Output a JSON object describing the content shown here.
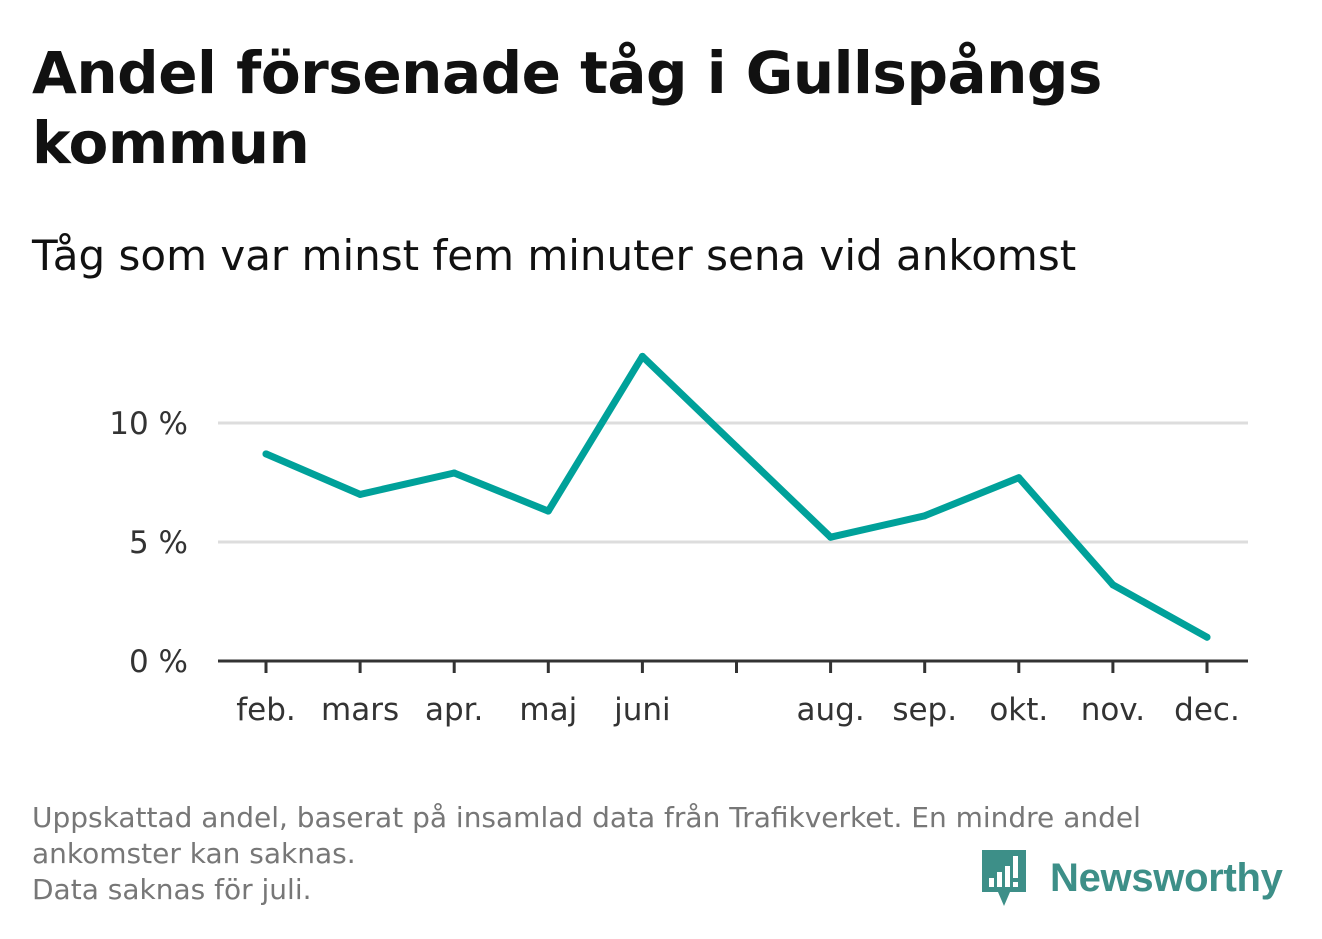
{
  "title": "Andel försenade tåg i Gullspångs kommun",
  "subtitle": "Tåg som var minst fem minuter sena vid ankomst",
  "footer": {
    "line1": "Uppskattad andel, baserat på insamlad data från Trafikverket. En mindre andel",
    "line2": "ankomster kan saknas.",
    "line3": "Data saknas för juli."
  },
  "brand": {
    "name": "Newsworthy",
    "icon": "newsworthy-logo-icon",
    "color": "#3d8f88"
  },
  "colors": {
    "line": "#00a19a",
    "grid": "#dddddd",
    "axis": "#333333"
  },
  "chart_data": {
    "type": "line",
    "title": "Andel försenade tåg i Gullspångs kommun",
    "subtitle": "Tåg som var minst fem minuter sena vid ankomst",
    "categories": [
      "feb.",
      "mars",
      "apr.",
      "maj",
      "juni",
      "",
      "aug.",
      "sep.",
      "okt.",
      "nov.",
      "dec."
    ],
    "values": [
      8.7,
      7.0,
      7.9,
      6.3,
      12.8,
      9.0,
      5.2,
      6.1,
      7.7,
      3.2,
      1.0
    ],
    "yticks": [
      0,
      5,
      10
    ],
    "ytick_labels": [
      "0 %",
      "5 %",
      "10 %"
    ],
    "ylim": [
      0,
      13.5
    ],
    "grid": true,
    "legend": "none"
  }
}
